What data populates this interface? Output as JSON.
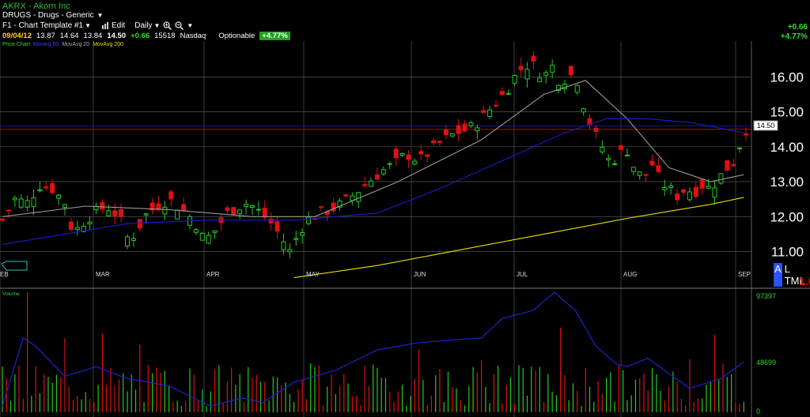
{
  "header": {
    "ticker_title": "AKRX - Akorn Inc",
    "sector": "DRUGS - Drugs - Generic",
    "template": "F1 - Chart Template #1",
    "edit_label": "Edit",
    "period": "Daily",
    "date": "09/04/12",
    "open": "13.87",
    "high": "14.64",
    "low": "13.84",
    "close": "14.50",
    "change": "+0.66",
    "volume": "15518",
    "exchange": "Nasdaq",
    "optionable": "Optionable",
    "pct_change": "+4.77%",
    "right_change": "+0.66",
    "right_pct": "+4.77%"
  },
  "legend": {
    "price_chart": "Price Chart",
    "ma_a": "Moving 50",
    "ma_b": "MovAvg 20",
    "ma_c": "MovAvg 200"
  },
  "icons": {
    "chart": "bar-chart-icon",
    "zoom_in": "zoom-in-icon",
    "zoom_out": "zoom-out-icon"
  },
  "colors": {
    "up": "#22cc22",
    "down": "#e01010",
    "ma20": "#9a9a9a",
    "ma50": "#1c1ccc",
    "ma200": "#e8e000",
    "last": "#c00000",
    "grid": "#555555"
  },
  "price_labels": {
    "last": "14.50"
  },
  "volume_panel": {
    "label": "Volume",
    "ticks": [
      "97397",
      "48699",
      "0"
    ]
  },
  "corner": {
    "a": "A",
    "letters": "L TML",
    "red": "1.0"
  },
  "chart_data": {
    "type": "candlestick",
    "y_ticks": [
      "11.00",
      "12.00",
      "13.00",
      "14.00",
      "15.00",
      "16.00"
    ],
    "ylim": [
      10.4,
      16.8
    ],
    "x_labels": [
      "EB",
      "MAR",
      "APR",
      "MAY",
      "JUN",
      "JUL",
      "AUG",
      "SEP"
    ],
    "last_price": 14.5,
    "anchors": [
      [
        0,
        11.9
      ],
      [
        6,
        12.5
      ],
      [
        12,
        12.4
      ],
      [
        18,
        12.9
      ],
      [
        24,
        12.8
      ],
      [
        30,
        12.4
      ],
      [
        34,
        11.5
      ],
      [
        38,
        11.8
      ],
      [
        44,
        12.1
      ],
      [
        50,
        12.3
      ],
      [
        56,
        12.0
      ],
      [
        60,
        11.4
      ],
      [
        64,
        11.5
      ],
      [
        68,
        12.0
      ],
      [
        74,
        12.3
      ],
      [
        80,
        12.5
      ],
      [
        86,
        12.2
      ],
      [
        92,
        11.9
      ],
      [
        97,
        11.3
      ],
      [
        102,
        11.6
      ],
      [
        108,
        12.1
      ],
      [
        114,
        12.3
      ],
      [
        118,
        12.4
      ],
      [
        124,
        12.1
      ],
      [
        128,
        11.9
      ],
      [
        134,
        11.4
      ],
      [
        138,
        11.0
      ],
      [
        142,
        11.5
      ],
      [
        146,
        11.9
      ],
      [
        152,
        12.1
      ],
      [
        158,
        12.2
      ],
      [
        164,
        12.4
      ],
      [
        170,
        12.7
      ],
      [
        176,
        13.0
      ],
      [
        182,
        13.3
      ],
      [
        188,
        13.5
      ],
      [
        194,
        13.8
      ],
      [
        200,
        13.6
      ],
      [
        206,
        13.9
      ],
      [
        212,
        14.2
      ],
      [
        218,
        14.4
      ],
      [
        224,
        14.5
      ],
      [
        230,
        14.8
      ],
      [
        236,
        15.2
      ],
      [
        242,
        15.6
      ],
      [
        248,
        16.2
      ],
      [
        254,
        16.4
      ],
      [
        260,
        16.0
      ],
      [
        264,
        16.3
      ],
      [
        268,
        15.8
      ],
      [
        272,
        16.1
      ],
      [
        276,
        15.9
      ],
      [
        280,
        15.0
      ],
      [
        284,
        14.4
      ],
      [
        288,
        14.0
      ],
      [
        292,
        13.5
      ],
      [
        296,
        13.8
      ],
      [
        300,
        13.9
      ],
      [
        304,
        13.3
      ],
      [
        308,
        13.1
      ],
      [
        312,
        13.5
      ],
      [
        316,
        13.0
      ],
      [
        320,
        12.8
      ],
      [
        324,
        12.6
      ],
      [
        328,
        12.8
      ],
      [
        332,
        12.7
      ],
      [
        336,
        12.9
      ],
      [
        340,
        12.8
      ],
      [
        344,
        13.1
      ],
      [
        348,
        13.4
      ],
      [
        352,
        13.6
      ],
      [
        356,
        14.5
      ]
    ],
    "series": [
      {
        "name": "MovAvg 20",
        "type": "line",
        "points": [
          [
            0,
            12.0
          ],
          [
            40,
            12.3
          ],
          [
            80,
            12.2
          ],
          [
            120,
            12.0
          ],
          [
            150,
            12.0
          ],
          [
            190,
            13.0
          ],
          [
            230,
            14.2
          ],
          [
            260,
            15.5
          ],
          [
            280,
            15.9
          ],
          [
            300,
            14.8
          ],
          [
            320,
            13.4
          ],
          [
            340,
            13.0
          ],
          [
            356,
            13.2
          ]
        ]
      },
      {
        "name": "MovAvg 50",
        "type": "line",
        "points": [
          [
            0,
            11.2
          ],
          [
            30,
            11.5
          ],
          [
            60,
            11.8
          ],
          [
            100,
            11.9
          ],
          [
            140,
            11.9
          ],
          [
            180,
            12.1
          ],
          [
            210,
            12.8
          ],
          [
            240,
            13.6
          ],
          [
            270,
            14.4
          ],
          [
            290,
            14.8
          ],
          [
            310,
            14.8
          ],
          [
            330,
            14.7
          ],
          [
            356,
            14.4
          ]
        ]
      },
      {
        "name": "MovAvg 200",
        "type": "line",
        "points": [
          [
            140,
            10.25
          ],
          [
            180,
            10.6
          ],
          [
            220,
            11.05
          ],
          [
            260,
            11.5
          ],
          [
            300,
            11.95
          ],
          [
            320,
            12.15
          ],
          [
            340,
            12.35
          ],
          [
            356,
            12.55
          ]
        ]
      }
    ],
    "volume_ma_line": [
      [
        0,
        5
      ],
      [
        10,
        62
      ],
      [
        16,
        55
      ],
      [
        30,
        30
      ],
      [
        45,
        38
      ],
      [
        60,
        28
      ],
      [
        80,
        22
      ],
      [
        100,
        5
      ],
      [
        115,
        12
      ],
      [
        125,
        8
      ],
      [
        140,
        25
      ],
      [
        160,
        35
      ],
      [
        180,
        52
      ],
      [
        200,
        58
      ],
      [
        215,
        60
      ],
      [
        230,
        62
      ],
      [
        240,
        78
      ],
      [
        255,
        85
      ],
      [
        265,
        100
      ],
      [
        275,
        85
      ],
      [
        285,
        55
      ],
      [
        295,
        40
      ],
      [
        300,
        38
      ],
      [
        310,
        45
      ],
      [
        320,
        32
      ],
      [
        330,
        20
      ],
      [
        345,
        28
      ],
      [
        356,
        42
      ]
    ],
    "ylim_volume": [
      0,
      97397
    ]
  }
}
